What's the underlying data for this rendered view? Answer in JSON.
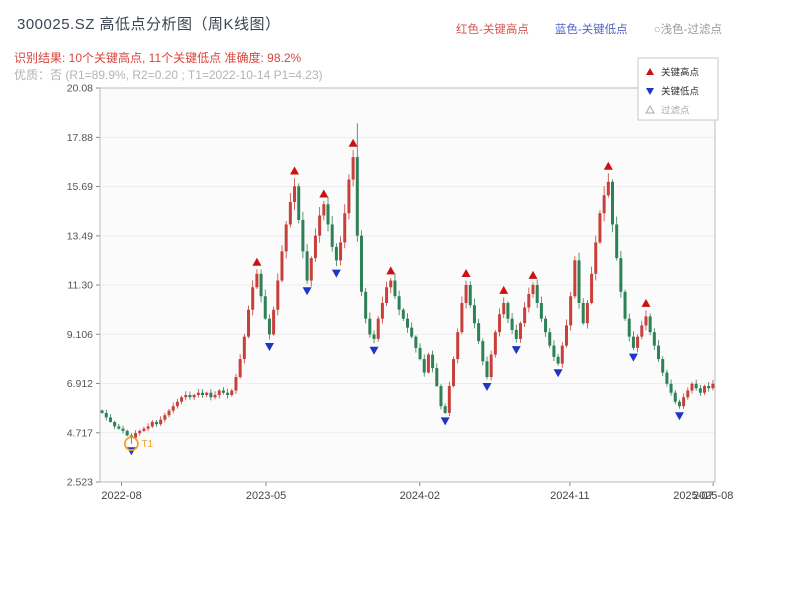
{
  "header": {
    "title": "300025.SZ 高低点分析图（周K线图）",
    "legend_top": [
      {
        "label": "红色-关键高点",
        "color": "#d9544f"
      },
      {
        "label": "蓝色-关键低点",
        "color": "#5064c8"
      },
      {
        "label": "○浅色-过滤点",
        "color": "#9a9a9a"
      }
    ],
    "result_line": "识别结果: 10个关键高点, 11个关键低点  准确度: 98.2%",
    "result_color": "#d9453c",
    "quality_line": "优质：否 (R1=89.9%, R2=0.20 ; T1=2022-10-14 P1=4.23)",
    "quality_color": "#b3b3b3"
  },
  "chart_data": {
    "type": "candlestick",
    "symbol": "300025.SZ",
    "period": "weekly",
    "title": "300025.SZ 高低点分析图（周K线图）",
    "ylim": [
      2.523,
      20.08
    ],
    "y_ticks": [
      "2.523",
      "4.717",
      "6.912",
      "9.106",
      "11.30",
      "13.49",
      "15.69",
      "17.88",
      "20.08"
    ],
    "y_values": [
      2.523,
      4.717,
      6.912,
      9.106,
      11.3,
      13.49,
      15.69,
      17.88,
      20.08
    ],
    "x_ticks": [
      {
        "label": "2022-08",
        "pos": 0.035
      },
      {
        "label": "2023-05",
        "pos": 0.27
      },
      {
        "label": "2024-02",
        "pos": 0.52
      },
      {
        "label": "2024-11",
        "pos": 0.764
      },
      {
        "label": "2025-08",
        "pos": 0.997
      }
    ],
    "x_extra_label": {
      "label": "2025-07",
      "pos": 0.965
    },
    "closes": [
      5.6,
      5.4,
      5.2,
      5.0,
      4.9,
      4.8,
      4.6,
      4.5,
      4.7,
      4.8,
      4.9,
      5.0,
      5.2,
      5.1,
      5.3,
      5.5,
      5.7,
      5.9,
      6.1,
      6.3,
      6.4,
      6.3,
      6.4,
      6.5,
      6.4,
      6.5,
      6.3,
      6.4,
      6.6,
      6.5,
      6.4,
      6.6,
      7.2,
      8.0,
      9.0,
      10.2,
      11.2,
      11.8,
      10.8,
      9.8,
      9.1,
      10.2,
      11.5,
      12.8,
      14.0,
      15.0,
      15.7,
      14.2,
      12.8,
      11.5,
      12.5,
      13.5,
      14.4,
      14.9,
      14.0,
      13.0,
      12.4,
      13.2,
      14.5,
      16.0,
      17.0,
      13.5,
      11.0,
      9.8,
      9.1,
      8.9,
      9.8,
      10.5,
      11.2,
      11.5,
      10.8,
      10.2,
      9.8,
      9.4,
      9.0,
      8.5,
      8.0,
      7.4,
      8.2,
      7.6,
      6.8,
      5.9,
      5.6,
      6.8,
      8.0,
      9.2,
      10.5,
      11.3,
      10.4,
      9.6,
      8.8,
      7.9,
      7.2,
      8.2,
      9.2,
      10.0,
      10.5,
      9.8,
      9.3,
      8.9,
      9.6,
      10.3,
      10.9,
      11.3,
      10.5,
      9.8,
      9.2,
      8.6,
      8.1,
      7.8,
      8.6,
      9.5,
      10.8,
      12.4,
      10.5,
      9.6,
      10.5,
      11.8,
      13.2,
      14.5,
      15.3,
      15.9,
      14.0,
      12.5,
      11.0,
      9.8,
      9.0,
      8.5,
      9.0,
      9.5,
      9.9,
      9.2,
      8.6,
      8.0,
      7.4,
      6.9,
      6.5,
      6.1,
      5.9,
      6.3,
      6.6,
      6.9,
      6.7,
      6.5,
      6.8,
      6.7,
      6.9
    ],
    "high_overrides": {
      "61": 18.5
    },
    "low_overrides": {
      "7": 4.23
    },
    "key_highs": [
      {
        "i": 37,
        "price": 11.8
      },
      {
        "i": 46,
        "price": 15.7
      },
      {
        "i": 53,
        "price": 14.9
      },
      {
        "i": 60,
        "price": 17.0
      },
      {
        "i": 69,
        "price": 11.5
      },
      {
        "i": 87,
        "price": 11.3
      },
      {
        "i": 96,
        "price": 10.5
      },
      {
        "i": 103,
        "price": 11.3
      },
      {
        "i": 121,
        "price": 15.9
      },
      {
        "i": 130,
        "price": 9.9
      }
    ],
    "key_lows": [
      {
        "i": 7,
        "price": 4.23
      },
      {
        "i": 40,
        "price": 9.1
      },
      {
        "i": 49,
        "price": 11.5
      },
      {
        "i": 56,
        "price": 12.4
      },
      {
        "i": 65,
        "price": 8.9
      },
      {
        "i": 82,
        "price": 5.6
      },
      {
        "i": 92,
        "price": 7.2
      },
      {
        "i": 99,
        "price": 8.9
      },
      {
        "i": 109,
        "price": 7.8
      },
      {
        "i": 127,
        "price": 8.5
      },
      {
        "i": 138,
        "price": 5.9
      }
    ],
    "t1": {
      "index": 7,
      "label": "T1",
      "date": "2022-10-14",
      "price": 4.23
    },
    "legend_box": [
      {
        "label": "关键高点",
        "marker": "triangle-up",
        "color": "#cc1111",
        "text_color": "#333333"
      },
      {
        "label": "关键低点",
        "marker": "triangle-down",
        "color": "#1f35c4",
        "text_color": "#333333"
      },
      {
        "label": "过滤点",
        "marker": "triangle-open",
        "color": "#aaaaaa",
        "text_color": "#aaaaaa"
      }
    ],
    "colors": {
      "up": "#c8403a",
      "down": "#2e8057",
      "key_high": "#cc1111",
      "key_low": "#1f35c4",
      "filtered": "#aaaaaa",
      "grid": "#ededed",
      "border": "#bbbbbb",
      "t1": "#f0a22e",
      "tick_label": "#555555"
    }
  }
}
